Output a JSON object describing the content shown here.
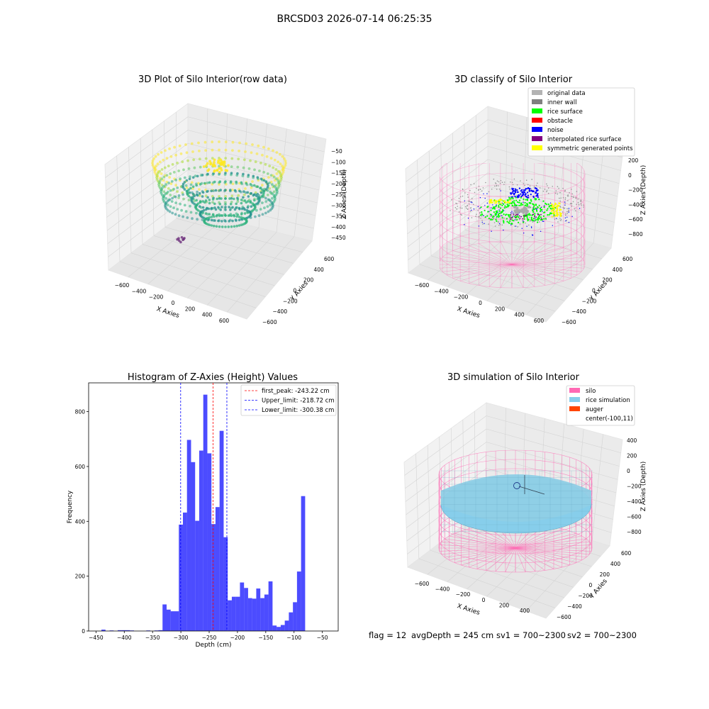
{
  "figure_title": "BRCSD03 2026-07-14 06:25:35",
  "footer": {
    "flag": "flag = 12",
    "avg_depth": "avgDepth = 245 cm",
    "sv1": "sv1 = 700~2300",
    "sv2": "sv2 = 700~2300"
  },
  "chart_data": [
    {
      "type": "scatter",
      "title": "3D Plot of Silo Interior(row data)",
      "xlabel": "X Axies",
      "ylabel": "Y Axies",
      "zlabel": "Z Axies (Depth)",
      "x_ticks": [
        "−600",
        "−400",
        "−200",
        "0",
        "200",
        "400",
        "600"
      ],
      "y_ticks": [
        "−600",
        "−400",
        "−200",
        "0",
        "200",
        "400",
        "600"
      ],
      "z_ticks": [
        "−50",
        "−100",
        "−150",
        "−200",
        "−250",
        "−300",
        "−350",
        "−400",
        "−450"
      ],
      "colormap": "viridis"
    },
    {
      "type": "scatter",
      "title": "3D classify of Silo Interior",
      "xlabel": "X Axies",
      "ylabel": "Y Axies",
      "zlabel": "Z Axies (Depth)",
      "x_ticks": [
        "−600",
        "−400",
        "−200",
        "0",
        "200",
        "400",
        "600"
      ],
      "y_ticks": [
        "−600",
        "−400",
        "−200",
        "0",
        "200",
        "400",
        "600"
      ],
      "z_ticks": [
        "200",
        "0",
        "−200",
        "−400",
        "−600",
        "−800"
      ],
      "legend_position": "top-right",
      "legend": [
        {
          "label": "original data",
          "color": "#b3b3b3"
        },
        {
          "label": "inner wall",
          "color": "#808080"
        },
        {
          "label": "rice surface",
          "color": "#00ff00"
        },
        {
          "label": "obstacle",
          "color": "#ff0000"
        },
        {
          "label": "noise",
          "color": "#0000ff"
        },
        {
          "label": "interpolated rice surface",
          "color": "#800080"
        },
        {
          "label": "symmetric generated points",
          "color": "#ffff00"
        }
      ]
    },
    {
      "type": "bar",
      "title": "Histogram of Z-Axies (Height) Values",
      "xlabel": "Depth (cm)",
      "ylabel": "Frequency",
      "xlim": [
        -463,
        -22
      ],
      "ylim": [
        0,
        905
      ],
      "x_ticks": [
        -450,
        -400,
        -350,
        -300,
        -250,
        -200,
        -150,
        -100,
        -50
      ],
      "y_ticks": [
        0,
        200,
        400,
        600,
        800
      ],
      "bar_color": "#0000ff",
      "bin_width": 7.2,
      "bin_starts": [
        -447.6,
        -440.4,
        -433.2,
        -426.0,
        -418.8,
        -411.6,
        -404.4,
        -397.2,
        -390.0,
        -382.8,
        -375.6,
        -368.4,
        -361.2,
        -354.0,
        -346.8,
        -339.6,
        -332.4,
        -325.2,
        -318.0,
        -310.8,
        -303.6,
        -296.4,
        -289.2,
        -282.0,
        -274.8,
        -267.6,
        -260.4,
        -253.2,
        -246.0,
        -238.8,
        -231.6,
        -224.4,
        -217.2,
        -210.0,
        -202.8,
        -195.6,
        -188.4,
        -181.2,
        -174.0,
        -166.8,
        -159.6,
        -152.4,
        -145.2,
        -138.0,
        -130.8,
        -123.6,
        -116.4,
        -109.2,
        -102.0,
        -94.8,
        -87.6,
        -80.4,
        -73.2,
        -66.0,
        -58.8,
        -51.6,
        -44.4,
        -37.2
      ],
      "values": [
        0,
        5,
        0,
        2,
        0,
        3,
        3,
        3,
        2,
        0,
        0,
        0,
        2,
        0,
        2,
        3,
        97,
        78,
        72,
        72,
        388,
        432,
        697,
        616,
        402,
        658,
        862,
        648,
        390,
        452,
        730,
        342,
        112,
        125,
        125,
        177,
        157,
        120,
        118,
        155,
        120,
        133,
        181,
        20,
        15,
        22,
        38,
        68,
        105,
        217,
        492,
        0,
        0,
        0,
        0,
        0,
        0,
        0
      ],
      "vlines": [
        {
          "label": "first_peak: -243.22 cm",
          "x": -243.22,
          "color": "#ff0000"
        },
        {
          "label": "Upper_limit: -218.72 cm",
          "x": -218.72,
          "color": "#0000ff"
        },
        {
          "label": "Lower_limit: -300.38 cm",
          "x": -300.38,
          "color": "#0000ff"
        }
      ],
      "legend_position": "top-right"
    },
    {
      "type": "scatter",
      "title": "3D simulation of Silo Interior",
      "xlabel": "X Axies",
      "ylabel": "Y Axies",
      "zlabel": "Z Axies (Depth)",
      "x_ticks": [
        "−600",
        "−400",
        "−200",
        "0",
        "200",
        "400"
      ],
      "y_ticks": [
        "−600",
        "−400",
        "−200",
        "0",
        "200",
        "400",
        "600"
      ],
      "z_ticks": [
        "400",
        "200",
        "0",
        "−200",
        "−400",
        "−600",
        "−800"
      ],
      "legend_position": "top-right",
      "legend": [
        {
          "label": "silo",
          "color": "#ff69b4"
        },
        {
          "label": "rice simulation",
          "color": "#87ceeb"
        },
        {
          "label": "auger",
          "color": "#ff4500"
        },
        {
          "label": "center(-100,11)",
          "color": ""
        }
      ]
    }
  ]
}
